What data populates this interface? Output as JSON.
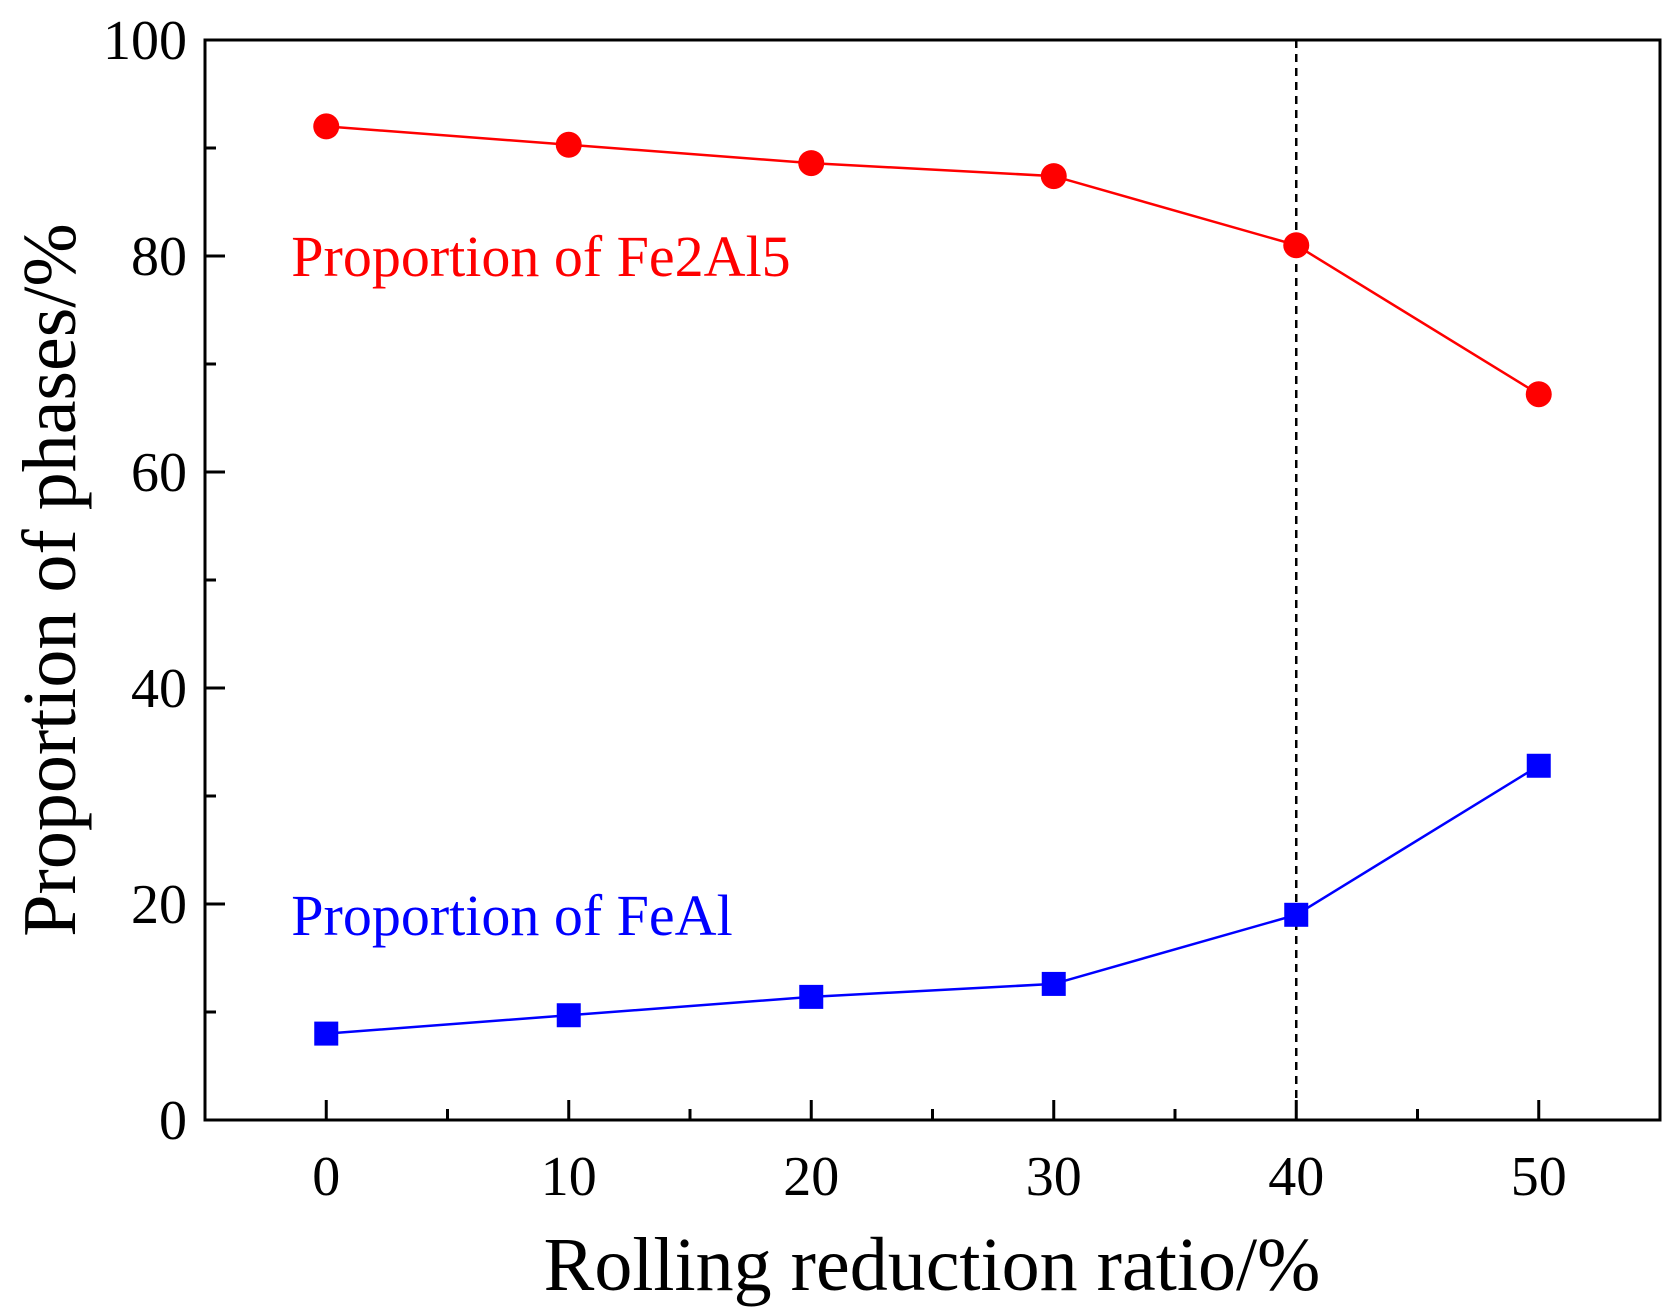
{
  "chart_data": {
    "type": "line",
    "title": "",
    "xlabel": "Rolling reduction ratio/%",
    "ylabel": "Proportion of phases/%",
    "xlim": [
      -5,
      55
    ],
    "ylim": [
      0,
      100
    ],
    "x_ticks": [
      0,
      10,
      20,
      30,
      40,
      50
    ],
    "x_minor_ticks": [
      5,
      15,
      25,
      35,
      45
    ],
    "y_ticks": [
      0,
      20,
      40,
      60,
      80,
      100
    ],
    "y_minor_ticks": [
      10,
      30,
      50,
      70,
      90
    ],
    "grid": false,
    "reference_line": {
      "x": 40,
      "style": "dashed",
      "color": "#000000"
    },
    "series": [
      {
        "name": "Fe2Al5",
        "label": "Proportion of Fe2Al5",
        "label_anchor": {
          "x": 0,
          "y": 80
        },
        "color": "#ff0000",
        "marker": "circle",
        "x": [
          0,
          10,
          20,
          30,
          40,
          50
        ],
        "values": [
          92,
          90.3,
          88.6,
          87.4,
          81,
          67.2
        ]
      },
      {
        "name": "FeAl",
        "label": "Proportion of FeAl",
        "label_anchor": {
          "x": 0,
          "y": 19
        },
        "color": "#0000ff",
        "marker": "square",
        "x": [
          0,
          10,
          20,
          30,
          40,
          50
        ],
        "values": [
          8,
          9.7,
          11.4,
          12.6,
          19,
          32.8
        ]
      }
    ]
  }
}
